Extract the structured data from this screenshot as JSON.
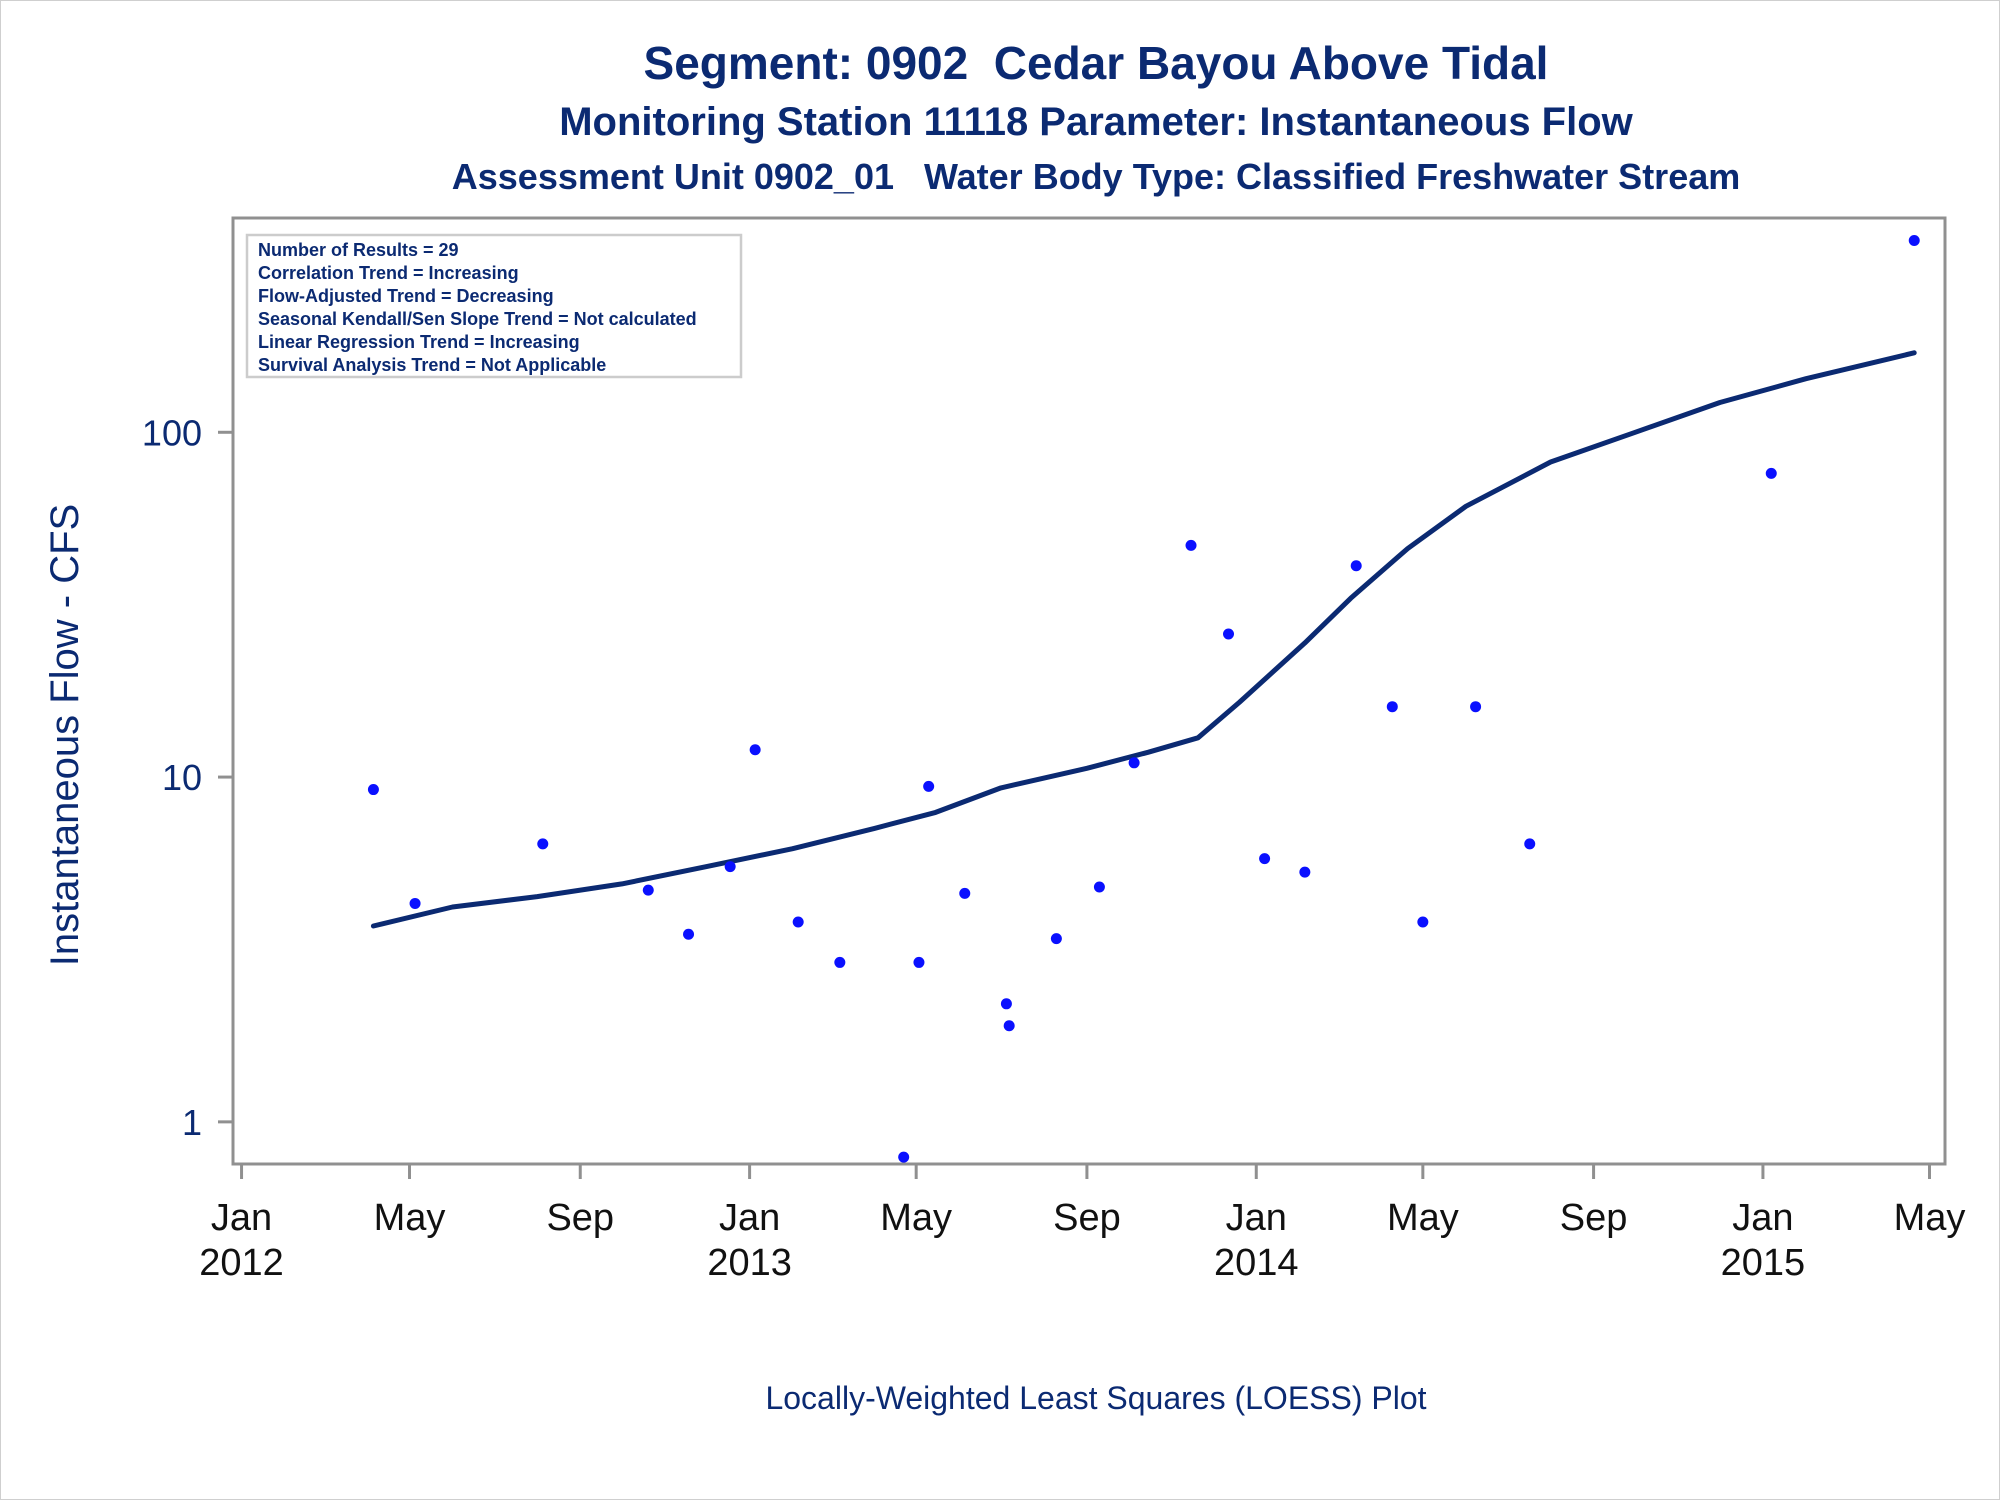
{
  "titles": {
    "line1": "Segment: 0902  Cedar Bayou Above Tidal",
    "line2": "Monitoring Station 11118 Parameter: Instantaneous Flow",
    "line3": "Assessment Unit 0902_01   Water Body Type: Classified Freshwater Stream"
  },
  "footnote": "Locally-Weighted Least Squares (LOESS) Plot",
  "stats_box": [
    "Number of Results = 29",
    "Correlation Trend = Increasing",
    "Flow-Adjusted Trend = Decreasing",
    "Seasonal Kendall/Sen Slope Trend = Not calculated",
    "Linear Regression Trend = Increasing",
    "Survival Analysis Trend = Not Applicable"
  ],
  "colors": {
    "text": "#0b2a72",
    "points": "#0a10ff",
    "loess_line": "#0b2a72",
    "axis": "#909090"
  },
  "chart_data": {
    "type": "scatter",
    "title": "Segment: 0902  Cedar Bayou Above Tidal",
    "ylabel": "Instantaneous Flow - CFS",
    "xlabel": "",
    "y_scale": "log",
    "ylim": [
      0.77,
      410
    ],
    "xlim": [
      "2011-12-28",
      "2015-05-10"
    ],
    "y_ticks": [
      {
        "value": 1,
        "label": "1"
      },
      {
        "value": 10,
        "label": "10"
      },
      {
        "value": 100,
        "label": "100"
      }
    ],
    "x_ticks": [
      {
        "date": "2012-01-01",
        "label": "Jan",
        "year": "2012"
      },
      {
        "date": "2012-05-01",
        "label": "May",
        "year": ""
      },
      {
        "date": "2012-09-01",
        "label": "Sep",
        "year": ""
      },
      {
        "date": "2013-01-01",
        "label": "Jan",
        "year": "2013"
      },
      {
        "date": "2013-05-01",
        "label": "May",
        "year": ""
      },
      {
        "date": "2013-09-01",
        "label": "Sep",
        "year": ""
      },
      {
        "date": "2014-01-01",
        "label": "Jan",
        "year": "2014"
      },
      {
        "date": "2014-05-01",
        "label": "May",
        "year": ""
      },
      {
        "date": "2014-09-01",
        "label": "Sep",
        "year": ""
      },
      {
        "date": "2015-01-01",
        "label": "Jan",
        "year": "2015"
      },
      {
        "date": "2015-05-01",
        "label": "May",
        "year": ""
      }
    ],
    "series": [
      {
        "kind": "points",
        "points": [
          {
            "x": "2012-04-05",
            "y": 9.2
          },
          {
            "x": "2012-05-05",
            "y": 4.3
          },
          {
            "x": "2012-08-05",
            "y": 6.4
          },
          {
            "x": "2012-10-20",
            "y": 4.7
          },
          {
            "x": "2012-11-18",
            "y": 3.5
          },
          {
            "x": "2012-12-18",
            "y": 5.5
          },
          {
            "x": "2013-01-05",
            "y": 12.0
          },
          {
            "x": "2013-02-05",
            "y": 3.8
          },
          {
            "x": "2013-03-07",
            "y": 2.9
          },
          {
            "x": "2013-04-22",
            "y": 0.79
          },
          {
            "x": "2013-05-03",
            "y": 2.9
          },
          {
            "x": "2013-05-10",
            "y": 9.4
          },
          {
            "x": "2013-06-05",
            "y": 4.6
          },
          {
            "x": "2013-07-05",
            "y": 2.2
          },
          {
            "x": "2013-07-07",
            "y": 1.9
          },
          {
            "x": "2013-08-10",
            "y": 3.4
          },
          {
            "x": "2013-09-10",
            "y": 4.8
          },
          {
            "x": "2013-10-05",
            "y": 11.0
          },
          {
            "x": "2013-11-15",
            "y": 47.0
          },
          {
            "x": "2013-12-12",
            "y": 26.0
          },
          {
            "x": "2014-01-07",
            "y": 5.8
          },
          {
            "x": "2014-02-05",
            "y": 5.3
          },
          {
            "x": "2014-03-14",
            "y": 41.0
          },
          {
            "x": "2014-04-09",
            "y": 16.0
          },
          {
            "x": "2014-05-01",
            "y": 3.8
          },
          {
            "x": "2014-06-08",
            "y": 16.0
          },
          {
            "x": "2014-07-17",
            "y": 6.4
          },
          {
            "x": "2015-01-07",
            "y": 76.0
          },
          {
            "x": "2015-04-20",
            "y": 360.0
          }
        ]
      },
      {
        "kind": "loess",
        "points": [
          {
            "x": "2012-04-05",
            "y": 3.7
          },
          {
            "x": "2012-06-01",
            "y": 4.2
          },
          {
            "x": "2012-08-01",
            "y": 4.5
          },
          {
            "x": "2012-10-01",
            "y": 4.9
          },
          {
            "x": "2012-12-01",
            "y": 5.5
          },
          {
            "x": "2013-02-01",
            "y": 6.2
          },
          {
            "x": "2013-04-01",
            "y": 7.1
          },
          {
            "x": "2013-05-15",
            "y": 7.9
          },
          {
            "x": "2013-07-01",
            "y": 9.3
          },
          {
            "x": "2013-09-01",
            "y": 10.6
          },
          {
            "x": "2013-10-15",
            "y": 11.8
          },
          {
            "x": "2013-11-20",
            "y": 13.0
          },
          {
            "x": "2013-12-20",
            "y": 16.5
          },
          {
            "x": "2014-02-05",
            "y": 24.5
          },
          {
            "x": "2014-03-10",
            "y": 33.0
          },
          {
            "x": "2014-04-20",
            "y": 46.0
          },
          {
            "x": "2014-06-01",
            "y": 61.0
          },
          {
            "x": "2014-08-01",
            "y": 82.0
          },
          {
            "x": "2014-10-01",
            "y": 100.0
          },
          {
            "x": "2014-12-01",
            "y": 122.0
          },
          {
            "x": "2015-02-01",
            "y": 143.0
          },
          {
            "x": "2015-04-20",
            "y": 170.0
          }
        ]
      }
    ],
    "grid": false,
    "legend": "none"
  }
}
